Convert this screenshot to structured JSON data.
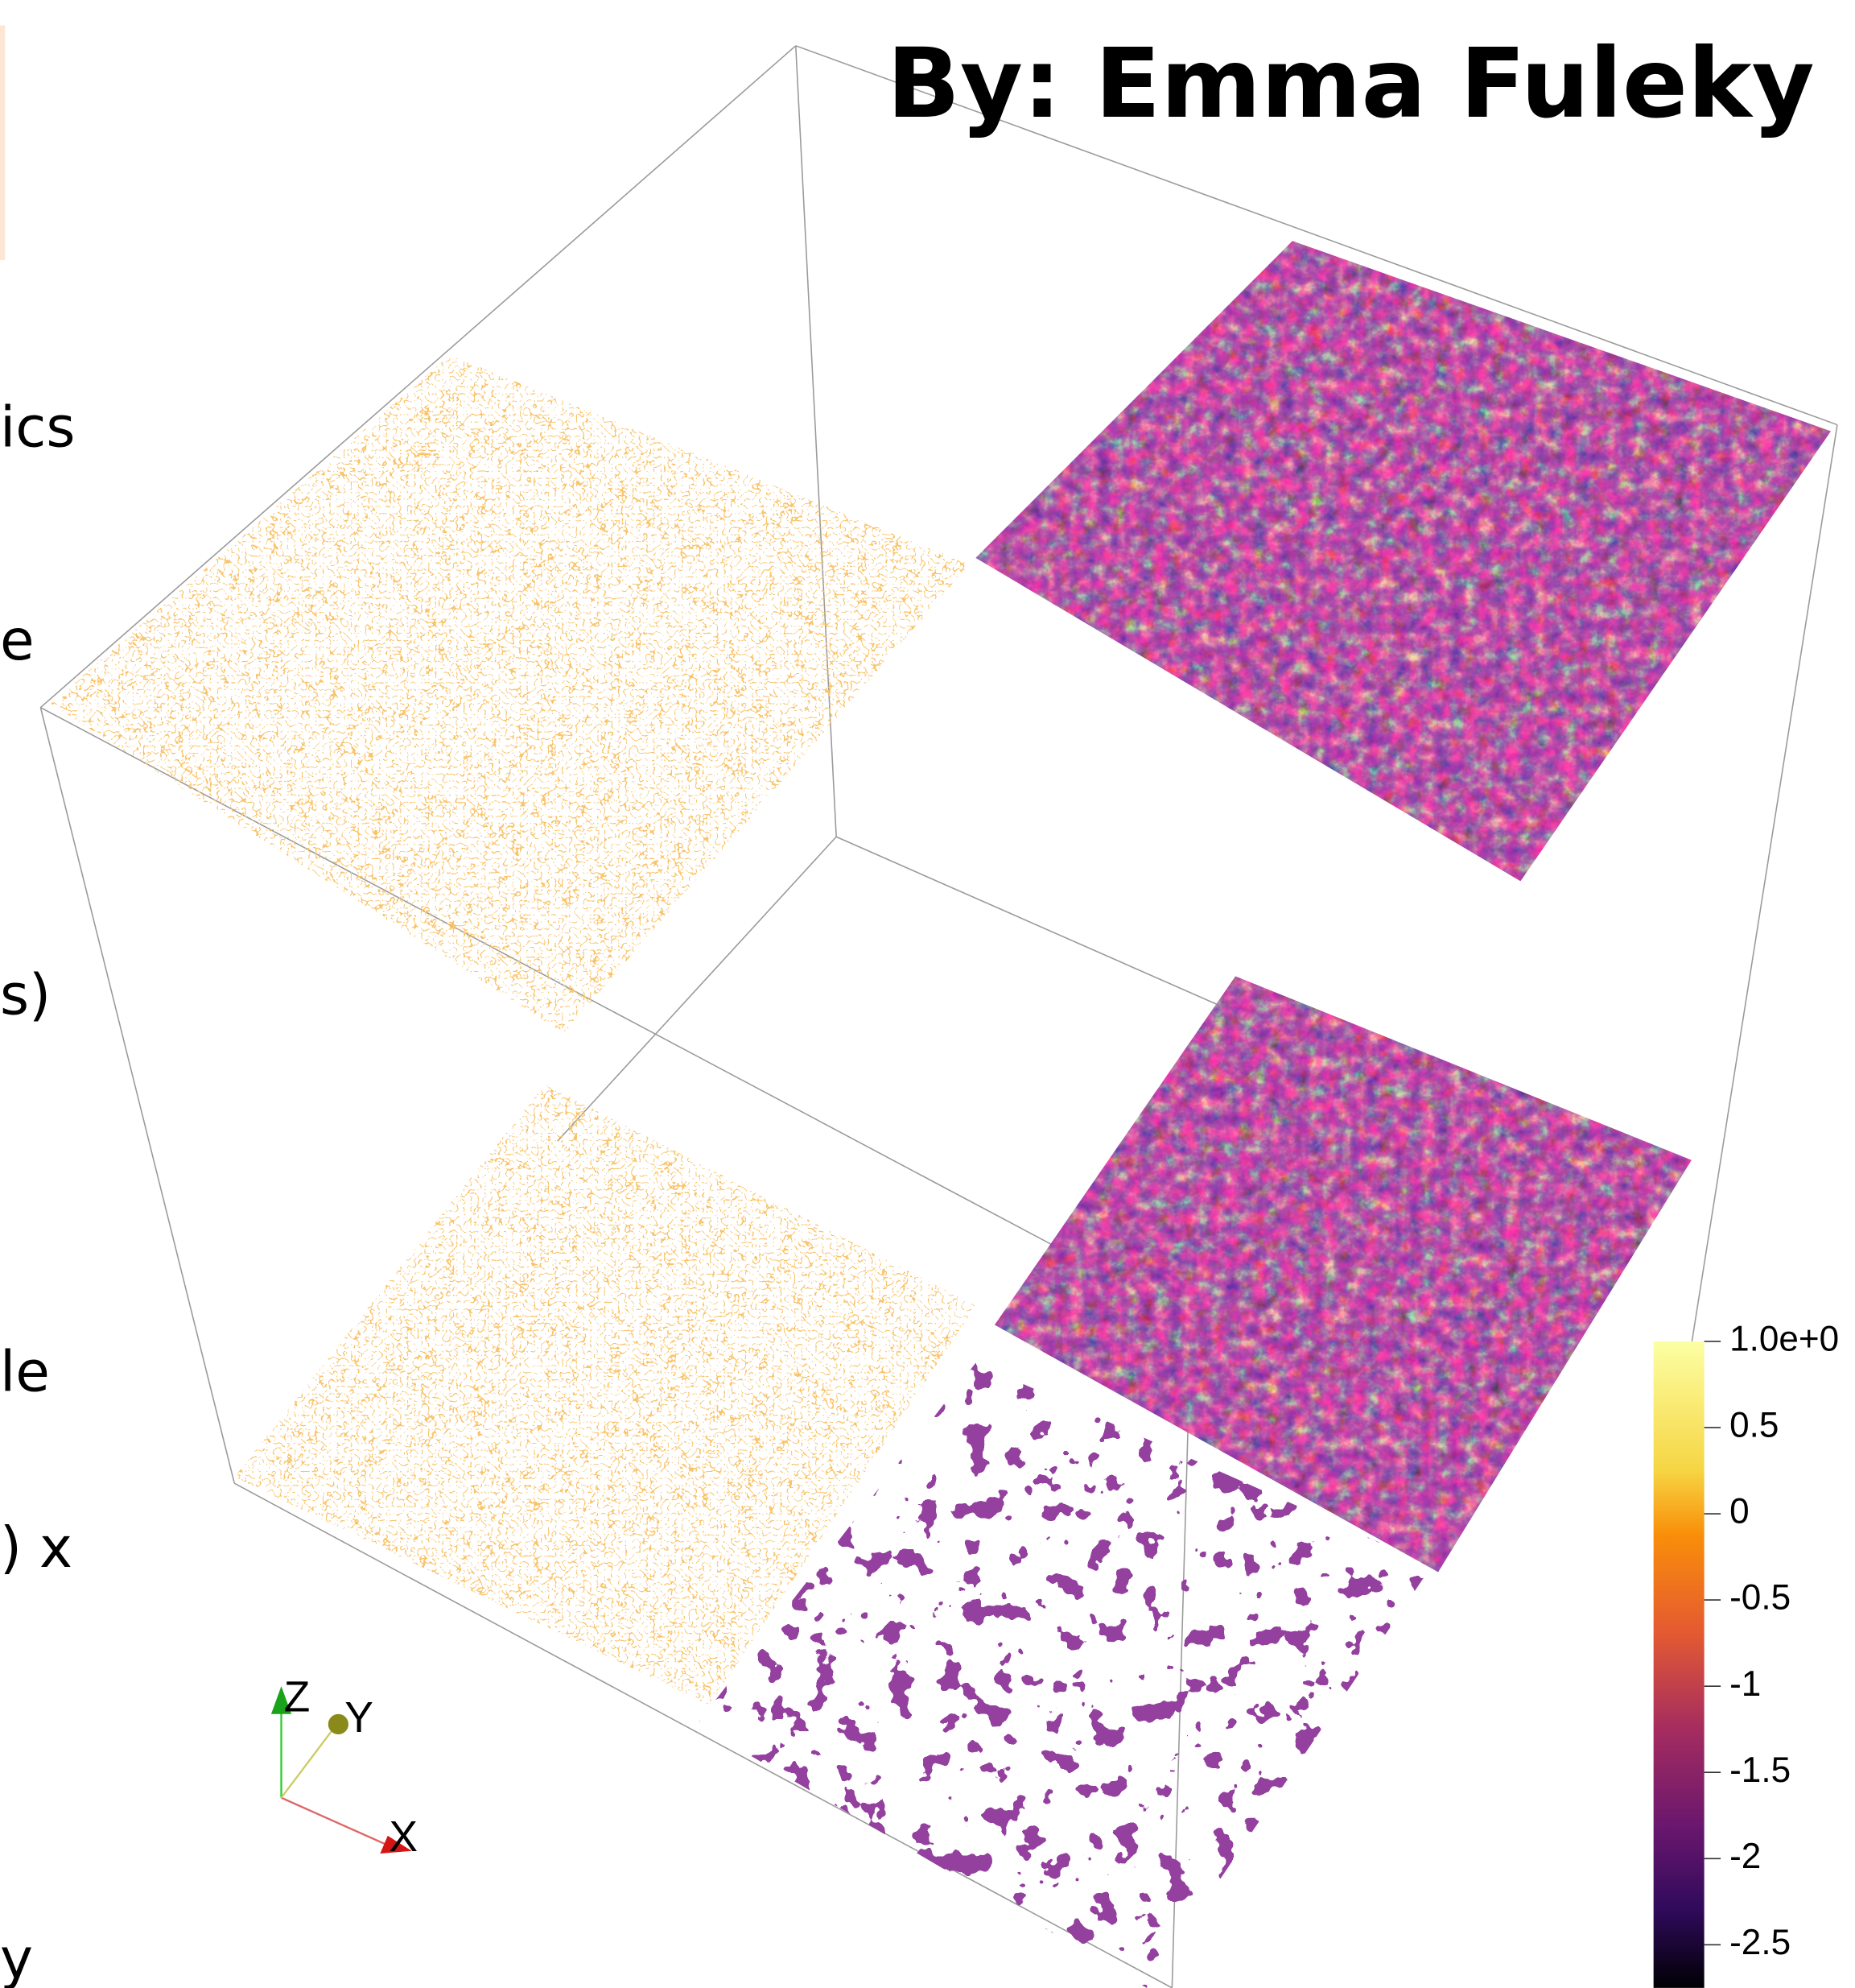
{
  "title": "By: Emma Fuleky",
  "side_text": [
    "ics",
    "e",
    "s)",
    "le",
    ") x",
    "y"
  ],
  "colorbar": {
    "ticks": [
      "1.0e+0",
      "0.5",
      "0",
      "-0.5",
      "-1",
      "-1.5",
      "-2",
      "-2.5"
    ]
  },
  "axes": {
    "x": "X",
    "y": "Y",
    "z": "Z"
  }
}
